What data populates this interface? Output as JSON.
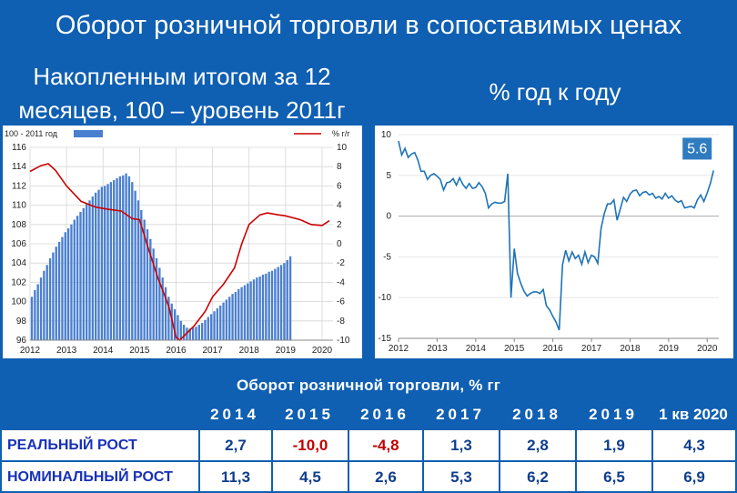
{
  "header": {
    "title": "Оборот розничной торговли в сопоставимых ценах",
    "left_heading": "Накопленным итогом за 12 месяцев, 100 – уровень 2011г",
    "right_heading": "% год к году"
  },
  "colors": {
    "background": "#0f5fb2",
    "bars": "#4a7fd0",
    "red_line": "#cc0000",
    "blue_line": "#1e73b8",
    "negative": "#c00000"
  },
  "chart_data": [
    {
      "type": "bar",
      "legend": [
        "100 - 2011 год",
        "% г/г"
      ],
      "x_ticks": [
        "2012",
        "2013",
        "2014",
        "2015",
        "2016",
        "2017",
        "2018",
        "2019",
        "2020"
      ],
      "y_left_ticks": [
        "116",
        "114",
        "112",
        "110",
        "108",
        "106",
        "104",
        "102",
        "100",
        "98",
        "96"
      ],
      "y_right_ticks": [
        "10",
        "8",
        "6",
        "4",
        "2",
        "0",
        "-2",
        "-4",
        "-6",
        "-8",
        "-10"
      ],
      "ylim_left": [
        96,
        116
      ],
      "ylim_right": [
        -10,
        10
      ],
      "x_range": [
        2012,
        2020.3
      ],
      "series": [
        {
          "name": "100 - 2011 год",
          "type": "bar",
          "x_start": 2012.0,
          "x_step": 0.0833,
          "values": [
            100.5,
            101.2,
            101.8,
            102.5,
            103.2,
            103.8,
            104.5,
            105.1,
            105.7,
            106.2,
            106.7,
            107.2,
            107.6,
            108.0,
            108.5,
            108.9,
            109.3,
            109.7,
            110.1,
            110.5,
            110.9,
            111.3,
            111.6,
            111.9,
            112.0,
            112.2,
            112.4,
            112.6,
            112.8,
            113.0,
            113.1,
            113.3,
            113.0,
            112.4,
            111.5,
            110.5,
            109.5,
            108.5,
            107.5,
            106.5,
            105.5,
            104.5,
            103.5,
            102.5,
            101.5,
            100.5,
            99.8,
            99.2,
            98.6,
            98.0,
            97.6,
            97.3,
            97.2,
            97.3,
            97.4,
            97.6,
            97.8,
            98.1,
            98.4,
            98.7,
            99.0,
            99.3,
            99.6,
            99.9,
            100.2,
            100.5,
            100.8,
            101.0,
            101.3,
            101.5,
            101.7,
            101.9,
            102.1,
            102.3,
            102.5,
            102.6,
            102.8,
            102.9,
            103.1,
            103.2,
            103.4,
            103.6,
            103.8,
            104.0,
            104.3,
            104.7
          ]
        },
        {
          "name": "% г/г",
          "type": "line",
          "points": [
            [
              2012.0,
              7.5
            ],
            [
              2012.3,
              8.1
            ],
            [
              2012.5,
              8.3
            ],
            [
              2012.7,
              7.6
            ],
            [
              2013.0,
              6.0
            ],
            [
              2013.4,
              4.4
            ],
            [
              2013.8,
              3.8
            ],
            [
              2014.1,
              3.6
            ],
            [
              2014.5,
              3.4
            ],
            [
              2014.8,
              2.6
            ],
            [
              2015.0,
              2.5
            ],
            [
              2015.2,
              0.0
            ],
            [
              2015.5,
              -3.5
            ],
            [
              2015.8,
              -6.5
            ],
            [
              2016.0,
              -9.7
            ],
            [
              2016.1,
              -10.0
            ],
            [
              2016.5,
              -8.5
            ],
            [
              2016.8,
              -7.0
            ],
            [
              2017.0,
              -5.5
            ],
            [
              2017.3,
              -4.2
            ],
            [
              2017.6,
              -2.5
            ],
            [
              2017.8,
              0.0
            ],
            [
              2018.0,
              2.0
            ],
            [
              2018.3,
              3.0
            ],
            [
              2018.5,
              3.2
            ],
            [
              2018.8,
              3.0
            ],
            [
              2019.0,
              2.9
            ],
            [
              2019.4,
              2.5
            ],
            [
              2019.7,
              2.0
            ],
            [
              2020.0,
              1.9
            ],
            [
              2020.2,
              2.4
            ]
          ]
        }
      ]
    },
    {
      "type": "line",
      "x_ticks": [
        "2012",
        "2013",
        "2014",
        "2015",
        "2016",
        "2017",
        "2018",
        "2019",
        "2020"
      ],
      "y_ticks": [
        "10",
        "5",
        "0",
        "-5",
        "-10",
        "-15"
      ],
      "ylim": [
        -15,
        10
      ],
      "x_range": [
        2012,
        2020.3
      ],
      "last_value_label": "5.6",
      "series": [
        {
          "name": "% год к году",
          "x_start": 2012.0,
          "x_step": 0.0833,
          "values": [
            9.2,
            7.5,
            8.3,
            7.2,
            7.6,
            7.8,
            6.9,
            5.5,
            5.5,
            4.5,
            5.0,
            5.2,
            4.9,
            4.5,
            3.2,
            4.1,
            4.2,
            4.6,
            3.8,
            4.7,
            3.9,
            3.4,
            4.0,
            3.4,
            3.5,
            4.1,
            3.6,
            2.8,
            1.0,
            1.5,
            1.7,
            1.6,
            1.6,
            1.8,
            5.2,
            -10.0,
            -4.0,
            -7.0,
            -8.2,
            -9.2,
            -9.8,
            -9.5,
            -9.3,
            -9.3,
            -9.5,
            -9.0,
            -11.0,
            -11.5,
            -12.3,
            -13.0,
            -14.0,
            -6.0,
            -4.2,
            -5.5,
            -4.4,
            -5.2,
            -4.8,
            -5.9,
            -4.4,
            -5.7,
            -4.8,
            -5.0,
            -5.8,
            -1.5,
            0.3,
            1.5,
            1.5,
            2.0,
            -0.5,
            0.9,
            2.3,
            1.8,
            2.7,
            3.1,
            3.2,
            2.5,
            2.9,
            3.0,
            2.6,
            2.8,
            2.2,
            2.4,
            2.1,
            2.8,
            2.2,
            2.5,
            2.0,
            1.7,
            1.9,
            1.0,
            1.1,
            1.2,
            1.0,
            2.0,
            2.6,
            1.8,
            2.8,
            4.0,
            5.6
          ]
        }
      ]
    }
  ],
  "table": {
    "title": "Оборот розничной торговли, % гг",
    "columns": [
      "2014",
      "2015",
      "2016",
      "2017",
      "2018",
      "2019",
      "1 кв 2020"
    ],
    "rows": [
      {
        "label": "РЕАЛЬНЫЙ РОСТ",
        "values": [
          "2,7",
          "-10,0",
          "-4,8",
          "1,3",
          "2,8",
          "1,9",
          "4,3"
        ]
      },
      {
        "label": "НОМИНАЛЬНЫЙ РОСТ",
        "values": [
          "11,3",
          "4,5",
          "2,6",
          "5,3",
          "6,2",
          "6,5",
          "6,9"
        ]
      }
    ]
  }
}
